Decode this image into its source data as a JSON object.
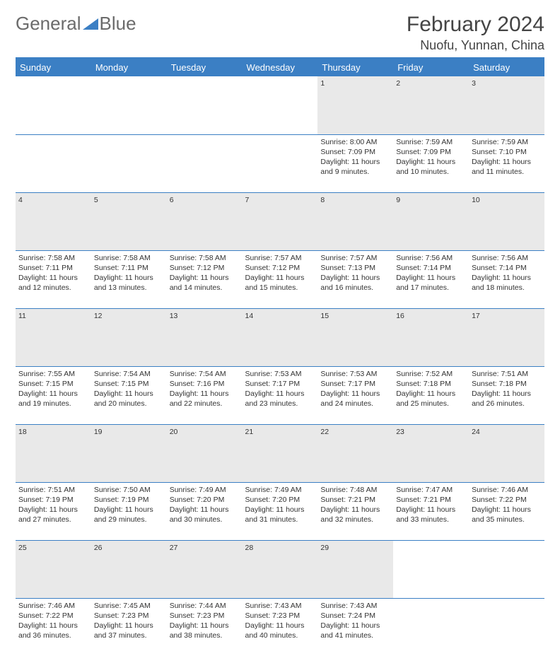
{
  "brand": {
    "part1": "General",
    "part2": "Blue"
  },
  "title": "February 2024",
  "location": "Nuofu, Yunnan, China",
  "colors": {
    "accent": "#3b7fc4",
    "daynum_bg": "#e9e9e9",
    "text": "#333333",
    "header_text": "#ffffff",
    "background": "#ffffff"
  },
  "typography": {
    "title_fontsize": 30,
    "location_fontsize": 18,
    "header_fontsize": 13,
    "cell_fontsize": 10.5
  },
  "weekday_headers": [
    "Sunday",
    "Monday",
    "Tuesday",
    "Wednesday",
    "Thursday",
    "Friday",
    "Saturday"
  ],
  "calendar": {
    "type": "table",
    "columns": 7,
    "start_weekday_index": 4,
    "days": [
      {
        "n": "1",
        "sunrise": "Sunrise: 8:00 AM",
        "sunset": "Sunset: 7:09 PM",
        "daylight1": "Daylight: 11 hours",
        "daylight2": "and 9 minutes."
      },
      {
        "n": "2",
        "sunrise": "Sunrise: 7:59 AM",
        "sunset": "Sunset: 7:09 PM",
        "daylight1": "Daylight: 11 hours",
        "daylight2": "and 10 minutes."
      },
      {
        "n": "3",
        "sunrise": "Sunrise: 7:59 AM",
        "sunset": "Sunset: 7:10 PM",
        "daylight1": "Daylight: 11 hours",
        "daylight2": "and 11 minutes."
      },
      {
        "n": "4",
        "sunrise": "Sunrise: 7:58 AM",
        "sunset": "Sunset: 7:11 PM",
        "daylight1": "Daylight: 11 hours",
        "daylight2": "and 12 minutes."
      },
      {
        "n": "5",
        "sunrise": "Sunrise: 7:58 AM",
        "sunset": "Sunset: 7:11 PM",
        "daylight1": "Daylight: 11 hours",
        "daylight2": "and 13 minutes."
      },
      {
        "n": "6",
        "sunrise": "Sunrise: 7:58 AM",
        "sunset": "Sunset: 7:12 PM",
        "daylight1": "Daylight: 11 hours",
        "daylight2": "and 14 minutes."
      },
      {
        "n": "7",
        "sunrise": "Sunrise: 7:57 AM",
        "sunset": "Sunset: 7:12 PM",
        "daylight1": "Daylight: 11 hours",
        "daylight2": "and 15 minutes."
      },
      {
        "n": "8",
        "sunrise": "Sunrise: 7:57 AM",
        "sunset": "Sunset: 7:13 PM",
        "daylight1": "Daylight: 11 hours",
        "daylight2": "and 16 minutes."
      },
      {
        "n": "9",
        "sunrise": "Sunrise: 7:56 AM",
        "sunset": "Sunset: 7:14 PM",
        "daylight1": "Daylight: 11 hours",
        "daylight2": "and 17 minutes."
      },
      {
        "n": "10",
        "sunrise": "Sunrise: 7:56 AM",
        "sunset": "Sunset: 7:14 PM",
        "daylight1": "Daylight: 11 hours",
        "daylight2": "and 18 minutes."
      },
      {
        "n": "11",
        "sunrise": "Sunrise: 7:55 AM",
        "sunset": "Sunset: 7:15 PM",
        "daylight1": "Daylight: 11 hours",
        "daylight2": "and 19 minutes."
      },
      {
        "n": "12",
        "sunrise": "Sunrise: 7:54 AM",
        "sunset": "Sunset: 7:15 PM",
        "daylight1": "Daylight: 11 hours",
        "daylight2": "and 20 minutes."
      },
      {
        "n": "13",
        "sunrise": "Sunrise: 7:54 AM",
        "sunset": "Sunset: 7:16 PM",
        "daylight1": "Daylight: 11 hours",
        "daylight2": "and 22 minutes."
      },
      {
        "n": "14",
        "sunrise": "Sunrise: 7:53 AM",
        "sunset": "Sunset: 7:17 PM",
        "daylight1": "Daylight: 11 hours",
        "daylight2": "and 23 minutes."
      },
      {
        "n": "15",
        "sunrise": "Sunrise: 7:53 AM",
        "sunset": "Sunset: 7:17 PM",
        "daylight1": "Daylight: 11 hours",
        "daylight2": "and 24 minutes."
      },
      {
        "n": "16",
        "sunrise": "Sunrise: 7:52 AM",
        "sunset": "Sunset: 7:18 PM",
        "daylight1": "Daylight: 11 hours",
        "daylight2": "and 25 minutes."
      },
      {
        "n": "17",
        "sunrise": "Sunrise: 7:51 AM",
        "sunset": "Sunset: 7:18 PM",
        "daylight1": "Daylight: 11 hours",
        "daylight2": "and 26 minutes."
      },
      {
        "n": "18",
        "sunrise": "Sunrise: 7:51 AM",
        "sunset": "Sunset: 7:19 PM",
        "daylight1": "Daylight: 11 hours",
        "daylight2": "and 27 minutes."
      },
      {
        "n": "19",
        "sunrise": "Sunrise: 7:50 AM",
        "sunset": "Sunset: 7:19 PM",
        "daylight1": "Daylight: 11 hours",
        "daylight2": "and 29 minutes."
      },
      {
        "n": "20",
        "sunrise": "Sunrise: 7:49 AM",
        "sunset": "Sunset: 7:20 PM",
        "daylight1": "Daylight: 11 hours",
        "daylight2": "and 30 minutes."
      },
      {
        "n": "21",
        "sunrise": "Sunrise: 7:49 AM",
        "sunset": "Sunset: 7:20 PM",
        "daylight1": "Daylight: 11 hours",
        "daylight2": "and 31 minutes."
      },
      {
        "n": "22",
        "sunrise": "Sunrise: 7:48 AM",
        "sunset": "Sunset: 7:21 PM",
        "daylight1": "Daylight: 11 hours",
        "daylight2": "and 32 minutes."
      },
      {
        "n": "23",
        "sunrise": "Sunrise: 7:47 AM",
        "sunset": "Sunset: 7:21 PM",
        "daylight1": "Daylight: 11 hours",
        "daylight2": "and 33 minutes."
      },
      {
        "n": "24",
        "sunrise": "Sunrise: 7:46 AM",
        "sunset": "Sunset: 7:22 PM",
        "daylight1": "Daylight: 11 hours",
        "daylight2": "and 35 minutes."
      },
      {
        "n": "25",
        "sunrise": "Sunrise: 7:46 AM",
        "sunset": "Sunset: 7:22 PM",
        "daylight1": "Daylight: 11 hours",
        "daylight2": "and 36 minutes."
      },
      {
        "n": "26",
        "sunrise": "Sunrise: 7:45 AM",
        "sunset": "Sunset: 7:23 PM",
        "daylight1": "Daylight: 11 hours",
        "daylight2": "and 37 minutes."
      },
      {
        "n": "27",
        "sunrise": "Sunrise: 7:44 AM",
        "sunset": "Sunset: 7:23 PM",
        "daylight1": "Daylight: 11 hours",
        "daylight2": "and 38 minutes."
      },
      {
        "n": "28",
        "sunrise": "Sunrise: 7:43 AM",
        "sunset": "Sunset: 7:23 PM",
        "daylight1": "Daylight: 11 hours",
        "daylight2": "and 40 minutes."
      },
      {
        "n": "29",
        "sunrise": "Sunrise: 7:43 AM",
        "sunset": "Sunset: 7:24 PM",
        "daylight1": "Daylight: 11 hours",
        "daylight2": "and 41 minutes."
      }
    ]
  }
}
